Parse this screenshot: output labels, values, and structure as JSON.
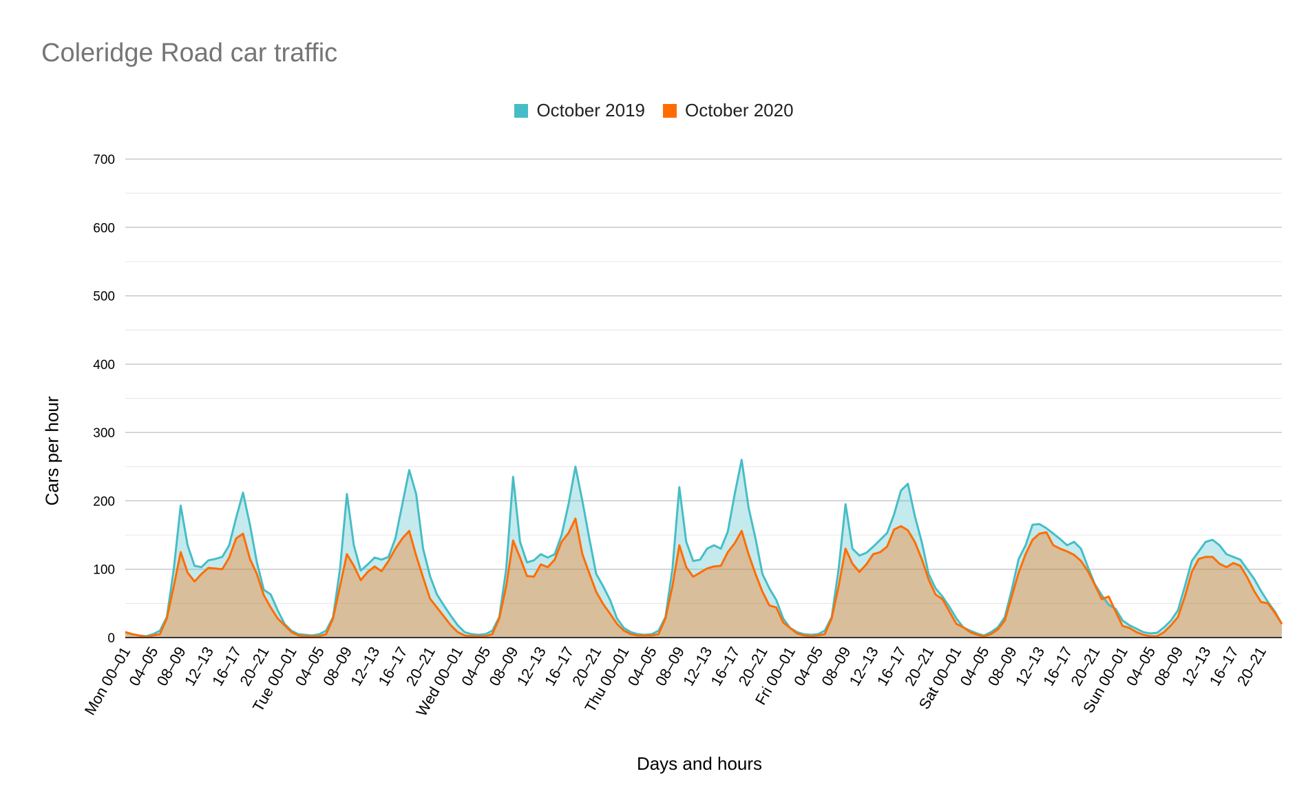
{
  "chart_data": {
    "type": "area",
    "title": "Coleridge Road car traffic",
    "xlabel": "Days and hours",
    "ylabel": "Cars per hour",
    "ylim": [
      0,
      700
    ],
    "yticks": [
      0,
      100,
      200,
      300,
      400,
      500,
      600,
      700
    ],
    "grid": true,
    "legend_position": "top",
    "x_tick_labels": [
      "Mon 00–01",
      "04–05",
      "08–09",
      "12–13",
      "16–17",
      "20–21",
      "Tue 00–01",
      "04–05",
      "08–09",
      "12–13",
      "16–17",
      "20–21",
      "Wed 00–01",
      "04–05",
      "08–09",
      "12–13",
      "16–17",
      "20–21",
      "Thu 00–01",
      "04–05",
      "08–09",
      "12–13",
      "16–17",
      "20–21",
      "Fri 00–01",
      "04–05",
      "08–09",
      "12–13",
      "16–17",
      "20–21",
      "Sat 00–01",
      "04–05",
      "08–09",
      "12–13",
      "16–17",
      "20–21",
      "Sun 00–01",
      "04–05",
      "08–09",
      "12–13",
      "16–17",
      "20–21"
    ],
    "series": [
      {
        "name": "October 2019",
        "color": "#46bdc6",
        "values": [
          8,
          5,
          3,
          2,
          5,
          10,
          30,
          100,
          193,
          135,
          105,
          103,
          113,
          115,
          118,
          135,
          175,
          212,
          165,
          110,
          70,
          63,
          40,
          20,
          10,
          5,
          4,
          3,
          5,
          10,
          30,
          100,
          210,
          135,
          98,
          107,
          117,
          114,
          118,
          145,
          195,
          245,
          210,
          130,
          90,
          63,
          47,
          32,
          18,
          8,
          5,
          4,
          5,
          10,
          30,
          100,
          235,
          140,
          110,
          113,
          122,
          117,
          122,
          150,
          195,
          250,
          200,
          145,
          93,
          75,
          55,
          28,
          14,
          8,
          5,
          4,
          5,
          10,
          30,
          100,
          220,
          140,
          112,
          114,
          130,
          135,
          130,
          155,
          210,
          260,
          190,
          145,
          93,
          72,
          55,
          28,
          14,
          8,
          5,
          4,
          5,
          10,
          30,
          100,
          195,
          130,
          120,
          124,
          133,
          143,
          153,
          180,
          215,
          225,
          178,
          140,
          93,
          72,
          60,
          45,
          28,
          15,
          10,
          6,
          3,
          8,
          15,
          30,
          70,
          115,
          135,
          165,
          166,
          160,
          152,
          144,
          135,
          140,
          130,
          103,
          78,
          62,
          48,
          42,
          25,
          18,
          13,
          8,
          6,
          7,
          15,
          25,
          40,
          75,
          112,
          126,
          140,
          143,
          135,
          122,
          118,
          114,
          100,
          86,
          68,
          52,
          38,
          20
        ]
      },
      {
        "name": "October 2020",
        "color": "#ff6d01",
        "values": [
          8,
          5,
          3,
          1,
          3,
          5,
          28,
          75,
          125,
          95,
          82,
          93,
          102,
          101,
          100,
          117,
          145,
          152,
          115,
          93,
          62,
          44,
          28,
          18,
          8,
          3,
          2,
          2,
          2,
          5,
          28,
          75,
          122,
          105,
          84,
          96,
          104,
          97,
          112,
          130,
          145,
          156,
          120,
          88,
          57,
          44,
          31,
          18,
          8,
          3,
          2,
          2,
          2,
          5,
          28,
          75,
          142,
          117,
          90,
          89,
          107,
          103,
          114,
          140,
          153,
          174,
          122,
          94,
          67,
          49,
          35,
          20,
          10,
          5,
          3,
          3,
          3,
          5,
          28,
          75,
          135,
          103,
          89,
          95,
          101,
          104,
          105,
          125,
          138,
          156,
          122,
          93,
          67,
          47,
          44,
          22,
          14,
          6,
          3,
          2,
          3,
          5,
          28,
          75,
          130,
          108,
          96,
          107,
          122,
          125,
          133,
          158,
          163,
          157,
          140,
          115,
          85,
          63,
          56,
          38,
          20,
          15,
          8,
          4,
          2,
          5,
          12,
          25,
          60,
          95,
          122,
          143,
          152,
          154,
          135,
          130,
          126,
          121,
          112,
          97,
          77,
          56,
          60,
          38,
          17,
          14,
          8,
          4,
          2,
          2,
          8,
          18,
          30,
          60,
          96,
          115,
          118,
          118,
          108,
          103,
          109,
          105,
          88,
          68,
          52,
          50,
          36,
          20
        ]
      }
    ]
  }
}
